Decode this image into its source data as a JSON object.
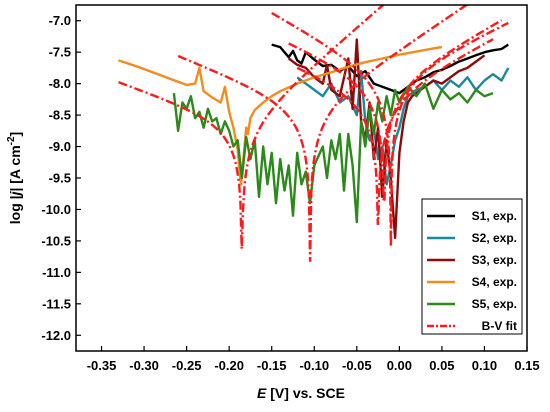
{
  "chart_data": {
    "type": "line",
    "xlabel_var": "E",
    "xlabel_rest": " [V] vs. SCE",
    "ylabel_pre": "log |",
    "ylabel_var": "j",
    "ylabel_mid": "| [A cm",
    "ylabel_sup": "-2",
    "ylabel_post": "]",
    "xlim": [
      -0.38,
      0.15
    ],
    "ylim": [
      -12.25,
      -6.75
    ],
    "xticks": [
      -0.35,
      -0.3,
      -0.25,
      -0.2,
      -0.15,
      -0.1,
      -0.05,
      0.0,
      0.05,
      0.1,
      0.15
    ],
    "xtick_labels": [
      "-0.35",
      "-0.30",
      "-0.25",
      "-0.20",
      "-0.15",
      "-0.10",
      "-0.05",
      "0.00",
      "0.05",
      "0.10",
      "0.15"
    ],
    "yticks": [
      -7.0,
      -7.5,
      -8.0,
      -8.5,
      -9.0,
      -9.5,
      -10.0,
      -10.5,
      -11.0,
      -11.5,
      -12.0
    ],
    "ytick_labels": [
      "-7.0",
      "-7.5",
      "-8.0",
      "-8.5",
      "-9.0",
      "-9.5",
      "-10.0",
      "-10.5",
      "-11.0",
      "-11.5",
      "-12.0"
    ],
    "legend_position": "bottom-right",
    "series": [
      {
        "name": "S1, exp.",
        "color": "#000000",
        "x": [
          -0.15,
          -0.14,
          -0.13,
          -0.125,
          -0.12,
          -0.115,
          -0.11,
          -0.1,
          -0.09,
          -0.08,
          -0.07,
          -0.06,
          -0.05,
          -0.04,
          -0.03,
          -0.02,
          -0.01,
          0.0,
          0.01,
          0.02,
          0.03,
          0.04,
          0.05,
          0.06,
          0.07,
          0.08,
          0.09,
          0.1,
          0.11,
          0.12,
          0.128
        ],
        "y": [
          -7.38,
          -7.42,
          -7.58,
          -7.48,
          -7.63,
          -7.68,
          -7.5,
          -7.62,
          -7.72,
          -7.7,
          -7.8,
          -7.72,
          -7.88,
          -7.8,
          -8.0,
          -8.05,
          -8.1,
          -8.15,
          -8.05,
          -7.95,
          -7.9,
          -7.82,
          -7.78,
          -7.72,
          -7.65,
          -7.6,
          -7.55,
          -7.5,
          -7.47,
          -7.45,
          -7.38
        ]
      },
      {
        "name": "S2, exp.",
        "color": "#1a8a9a",
        "x": [
          -0.12,
          -0.11,
          -0.1,
          -0.09,
          -0.08,
          -0.07,
          -0.06,
          -0.05,
          -0.045,
          -0.04,
          -0.035,
          -0.03,
          -0.025,
          -0.02,
          -0.015,
          -0.01,
          -0.005,
          0.0,
          0.005,
          0.01,
          0.02,
          0.03,
          0.04,
          0.05,
          0.06,
          0.07,
          0.08,
          0.09,
          0.1,
          0.11,
          0.12,
          0.128
        ],
        "y": [
          -7.9,
          -8.0,
          -8.1,
          -8.2,
          -8.0,
          -8.3,
          -8.2,
          -8.5,
          -7.8,
          -8.6,
          -8.9,
          -8.7,
          -9.2,
          -9.0,
          -9.6,
          -9.3,
          -8.9,
          -8.7,
          -8.4,
          -8.2,
          -8.1,
          -8.05,
          -7.95,
          -8.1,
          -7.95,
          -8.05,
          -7.9,
          -8.1,
          -7.95,
          -7.85,
          -7.95,
          -7.75
        ]
      },
      {
        "name": "S3, exp.",
        "color": "#8b0a0a",
        "x": [
          -0.13,
          -0.12,
          -0.11,
          -0.1,
          -0.09,
          -0.085,
          -0.08,
          -0.07,
          -0.06,
          -0.055,
          -0.05,
          -0.045,
          -0.04,
          -0.035,
          -0.03,
          -0.025,
          -0.02,
          -0.015,
          -0.01,
          -0.005,
          0.0,
          0.005,
          0.01,
          0.015,
          0.02,
          0.03,
          0.04,
          0.05,
          0.06,
          0.07,
          0.08,
          0.09,
          0.1
        ],
        "y": [
          -7.6,
          -7.7,
          -7.75,
          -7.9,
          -8.0,
          -7.7,
          -8.1,
          -8.2,
          -7.6,
          -8.4,
          -7.3,
          -8.6,
          -8.9,
          -8.3,
          -9.2,
          -8.7,
          -9.8,
          -8.9,
          -9.5,
          -10.45,
          -9.1,
          -8.6,
          -8.3,
          -8.2,
          -8.15,
          -8.05,
          -7.95,
          -8.0,
          -7.9,
          -7.8,
          -7.75,
          -7.65,
          -7.55
        ]
      },
      {
        "name": "S4, exp.",
        "color": "#f28c1e",
        "x": [
          -0.33,
          -0.31,
          -0.29,
          -0.27,
          -0.25,
          -0.24,
          -0.235,
          -0.23,
          -0.22,
          -0.21,
          -0.205,
          -0.2,
          -0.195,
          -0.19,
          -0.188,
          -0.186,
          -0.184,
          -0.182,
          -0.18,
          -0.178,
          -0.175,
          -0.17,
          -0.16,
          -0.15,
          -0.14,
          -0.12,
          -0.1,
          -0.08,
          -0.06,
          -0.04,
          -0.02,
          0.0,
          0.02,
          0.04,
          0.05
        ],
        "y": [
          -7.63,
          -7.72,
          -7.82,
          -7.92,
          -8.02,
          -8.0,
          -7.75,
          -8.12,
          -8.22,
          -8.3,
          -8.05,
          -8.45,
          -8.7,
          -9.05,
          -9.35,
          -9.6,
          -9.3,
          -9.0,
          -8.7,
          -8.8,
          -8.55,
          -8.42,
          -8.3,
          -8.2,
          -8.12,
          -8.0,
          -7.9,
          -7.82,
          -7.73,
          -7.66,
          -7.6,
          -7.54,
          -7.49,
          -7.44,
          -7.42
        ]
      },
      {
        "name": "S5, exp.",
        "color": "#2a8a1a",
        "x": [
          -0.265,
          -0.26,
          -0.255,
          -0.25,
          -0.245,
          -0.24,
          -0.235,
          -0.23,
          -0.225,
          -0.22,
          -0.215,
          -0.21,
          -0.205,
          -0.2,
          -0.195,
          -0.19,
          -0.185,
          -0.18,
          -0.175,
          -0.17,
          -0.165,
          -0.16,
          -0.155,
          -0.15,
          -0.145,
          -0.14,
          -0.135,
          -0.13,
          -0.125,
          -0.12,
          -0.115,
          -0.11,
          -0.105,
          -0.1,
          -0.095,
          -0.09,
          -0.085,
          -0.08,
          -0.075,
          -0.07,
          -0.065,
          -0.06,
          -0.055,
          -0.05,
          -0.045,
          -0.04,
          -0.035,
          -0.03,
          -0.025,
          -0.02,
          -0.015,
          -0.01,
          -0.005,
          0.0,
          0.01,
          0.02,
          0.03,
          0.04,
          0.05,
          0.06,
          0.07,
          0.08,
          0.09,
          0.1,
          0.11
        ],
        "y": [
          -8.15,
          -8.75,
          -8.3,
          -8.4,
          -8.2,
          -8.55,
          -8.45,
          -8.7,
          -8.4,
          -8.6,
          -8.55,
          -8.8,
          -8.6,
          -8.75,
          -9.0,
          -8.9,
          -9.5,
          -8.85,
          -9.2,
          -8.9,
          -9.8,
          -9.0,
          -9.6,
          -9.1,
          -9.9,
          -9.2,
          -9.7,
          -9.3,
          -10.1,
          -9.1,
          -9.6,
          -9.4,
          -9.9,
          -9.3,
          -9.15,
          -9.0,
          -9.5,
          -8.9,
          -9.2,
          -8.8,
          -9.7,
          -8.8,
          -9.3,
          -10.2,
          -8.6,
          -9.0,
          -8.4,
          -8.8,
          -8.3,
          -8.6,
          -8.2,
          -8.5,
          -8.1,
          -8.3,
          -8.05,
          -8.2,
          -8.0,
          -8.4,
          -8.1,
          -8.25,
          -8.15,
          -8.3,
          -8.1,
          -8.2,
          -8.15
        ]
      }
    ],
    "fit": {
      "name": "B-V fit",
      "color": "#ff1a1a",
      "curves": [
        {
          "ecorr": -0.185,
          "logicorr": -8.7,
          "ba": 0.085,
          "bc": 0.2,
          "xmin": -0.33,
          "xmax": 0.05,
          "ymin": -11.4
        },
        {
          "ecorr": -0.105,
          "logicorr": -8.42,
          "ba": 0.11,
          "bc": 0.18,
          "xmin": -0.26,
          "xmax": 0.11,
          "ymin": -11.85
        },
        {
          "ecorr": -0.025,
          "logicorr": -8.25,
          "ba": 0.14,
          "bc": 0.18,
          "xmin": -0.12,
          "xmax": 0.11,
          "ymin": -11.3
        },
        {
          "ecorr": -0.018,
          "logicorr": -8.05,
          "ba": 0.13,
          "bc": 0.16,
          "xmin": -0.13,
          "xmax": 0.12,
          "ymin": -10.8
        },
        {
          "ecorr": -0.01,
          "logicorr": -7.95,
          "ba": 0.15,
          "bc": 0.13,
          "xmin": -0.15,
          "xmax": 0.128,
          "ymin": -10.6
        }
      ]
    }
  }
}
